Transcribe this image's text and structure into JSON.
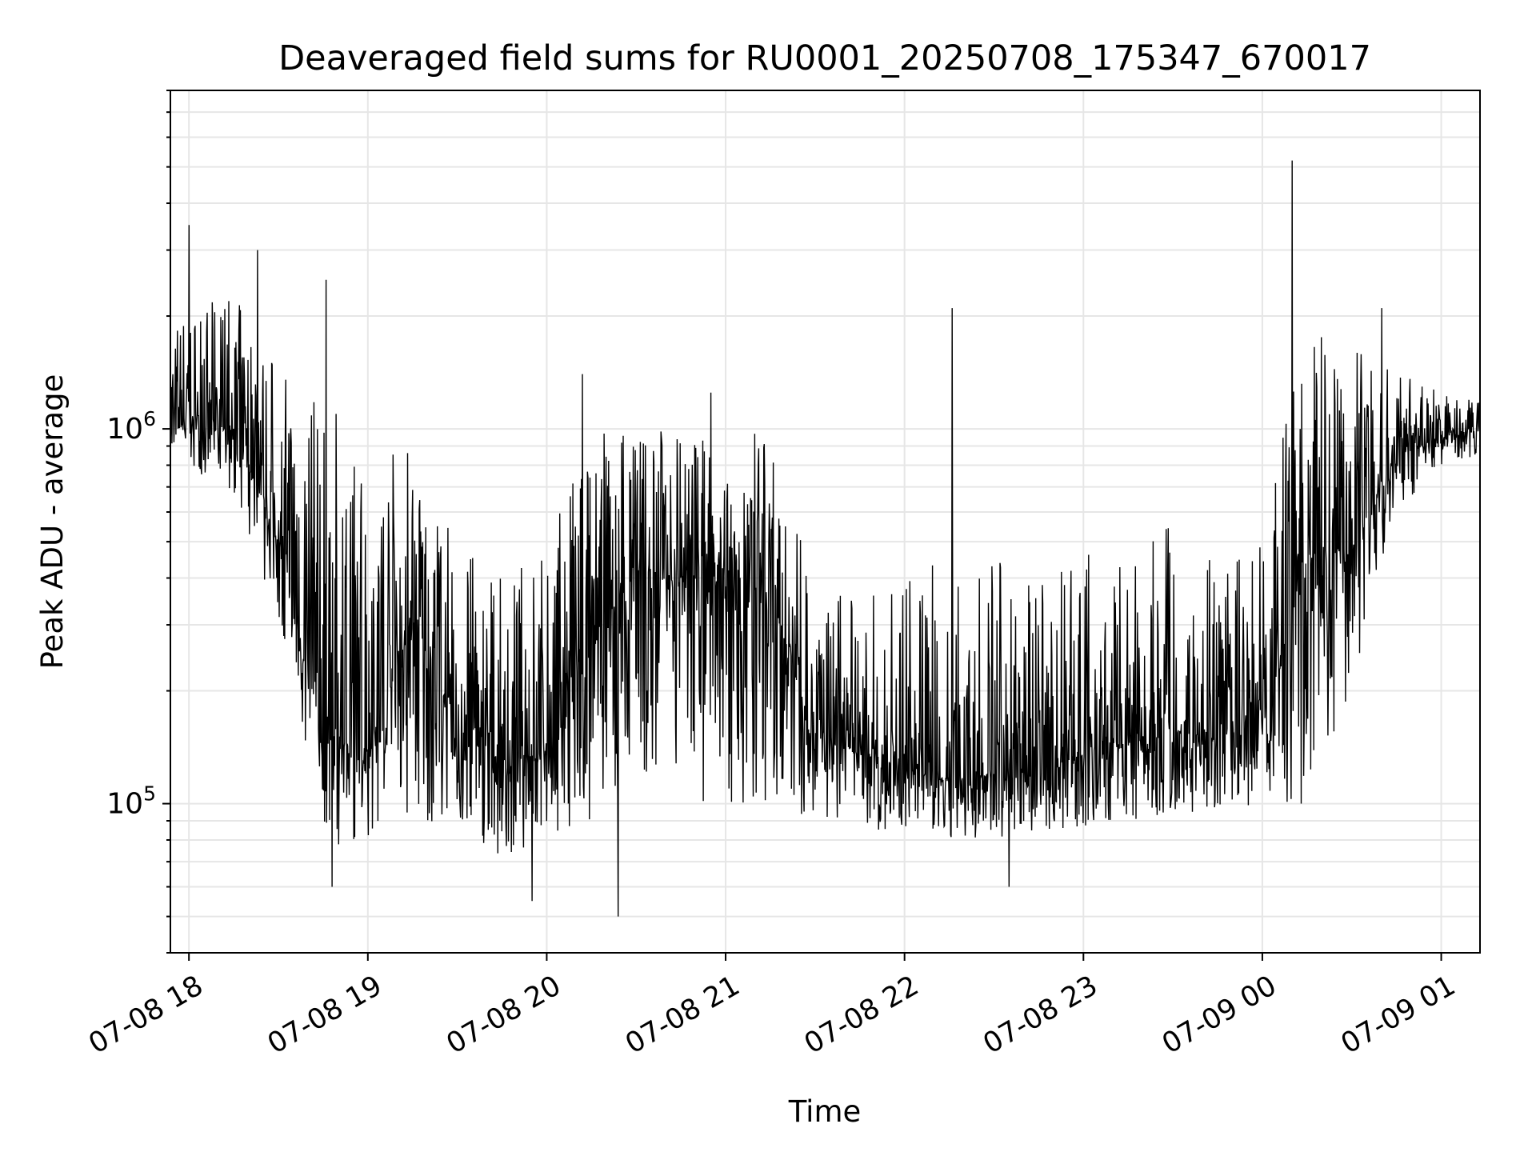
{
  "chart_data": {
    "type": "line",
    "title": "Deaveraged field sums for RU0001_20250708_175347_670017",
    "xlabel": "Time",
    "ylabel": "Peak ADU - average",
    "yscale": "log",
    "xlim": [
      "2025-07-08 17:53:47",
      "2025-07-09 01:13:00"
    ],
    "ylim": [
      40000,
      8000000
    ],
    "grid": "on",
    "legend": "none",
    "line_color": "#000000",
    "grid_color": "#e6e6e6",
    "x_ticks": [
      {
        "value": "2025-07-08 18:00",
        "label": "07-08 18"
      },
      {
        "value": "2025-07-08 19:00",
        "label": "07-08 19"
      },
      {
        "value": "2025-07-08 20:00",
        "label": "07-08 20"
      },
      {
        "value": "2025-07-08 21:00",
        "label": "07-08 21"
      },
      {
        "value": "2025-07-08 22:00",
        "label": "07-08 22"
      },
      {
        "value": "2025-07-08 23:00",
        "label": "07-08 23"
      },
      {
        "value": "2025-07-09 00:00",
        "label": "07-09 00"
      },
      {
        "value": "2025-07-09 01:00",
        "label": "07-09 01"
      }
    ],
    "y_ticks": [
      {
        "value": 100000,
        "base": "10",
        "exp": "5"
      },
      {
        "value": 1000000,
        "base": "10",
        "exp": "6"
      }
    ],
    "series_envelope": {
      "description_units": "x in time, y in ADU; approximate envelope of the dense trace",
      "x": [
        "2025-07-08 17:53:47",
        "2025-07-08 18:15",
        "2025-07-08 18:30",
        "2025-07-08 18:45",
        "2025-07-08 19:00",
        "2025-07-08 19:15",
        "2025-07-08 19:30",
        "2025-07-08 19:45",
        "2025-07-08 20:00",
        "2025-07-08 20:15",
        "2025-07-08 20:30",
        "2025-07-08 20:45",
        "2025-07-08 21:00",
        "2025-07-08 21:15",
        "2025-07-08 21:30",
        "2025-07-08 21:45",
        "2025-07-08 22:00",
        "2025-07-08 22:15",
        "2025-07-08 22:30",
        "2025-07-08 22:45",
        "2025-07-08 23:00",
        "2025-07-08 23:15",
        "2025-07-08 23:30",
        "2025-07-08 23:45",
        "2025-07-09 00:00",
        "2025-07-09 00:15",
        "2025-07-09 00:30",
        "2025-07-09 00:45",
        "2025-07-09 01:00",
        "2025-07-09 01:13"
      ],
      "median": [
        1050000,
        1000000,
        500000,
        150000,
        140000,
        300000,
        160000,
        130000,
        140000,
        260000,
        420000,
        400000,
        390000,
        360000,
        150000,
        135000,
        125000,
        115000,
        120000,
        115000,
        140000,
        145000,
        155000,
        150000,
        160000,
        450000,
        480000,
        850000,
        950000,
        1000000
      ],
      "low": [
        850000,
        650000,
        300000,
        75000,
        80000,
        90000,
        85000,
        70000,
        80000,
        85000,
        100000,
        100000,
        100000,
        100000,
        90000,
        85000,
        85000,
        80000,
        80000,
        85000,
        85000,
        90000,
        95000,
        95000,
        100000,
        100000,
        200000,
        600000,
        800000,
        850000
      ],
      "high": [
        2000000,
        2300000,
        1500000,
        1200000,
        900000,
        950000,
        500000,
        400000,
        500000,
        1000000,
        1050000,
        1000000,
        950000,
        1000000,
        400000,
        350000,
        400000,
        500000,
        450000,
        380000,
        480000,
        500000,
        550000,
        450000,
        500000,
        2000000,
        1800000,
        1400000,
        1300000,
        1200000
      ]
    },
    "notable_spikes": [
      {
        "x": "2025-07-08 18:00",
        "y": 3500000
      },
      {
        "x": "2025-07-08 18:23",
        "y": 3000000
      },
      {
        "x": "2025-07-08 18:46",
        "y": 2500000
      },
      {
        "x": "2025-07-08 20:12",
        "y": 1400000
      },
      {
        "x": "2025-07-08 20:55",
        "y": 1250000
      },
      {
        "x": "2025-07-08 22:16",
        "y": 2100000
      },
      {
        "x": "2025-07-09 00:10",
        "y": 5200000
      },
      {
        "x": "2025-07-09 00:40",
        "y": 2100000
      }
    ],
    "notable_dips": [
      {
        "x": "2025-07-08 18:48",
        "y": 60000
      },
      {
        "x": "2025-07-08 19:55",
        "y": 55000
      },
      {
        "x": "2025-07-08 20:24",
        "y": 50000
      },
      {
        "x": "2025-07-08 22:35",
        "y": 60000
      }
    ]
  }
}
